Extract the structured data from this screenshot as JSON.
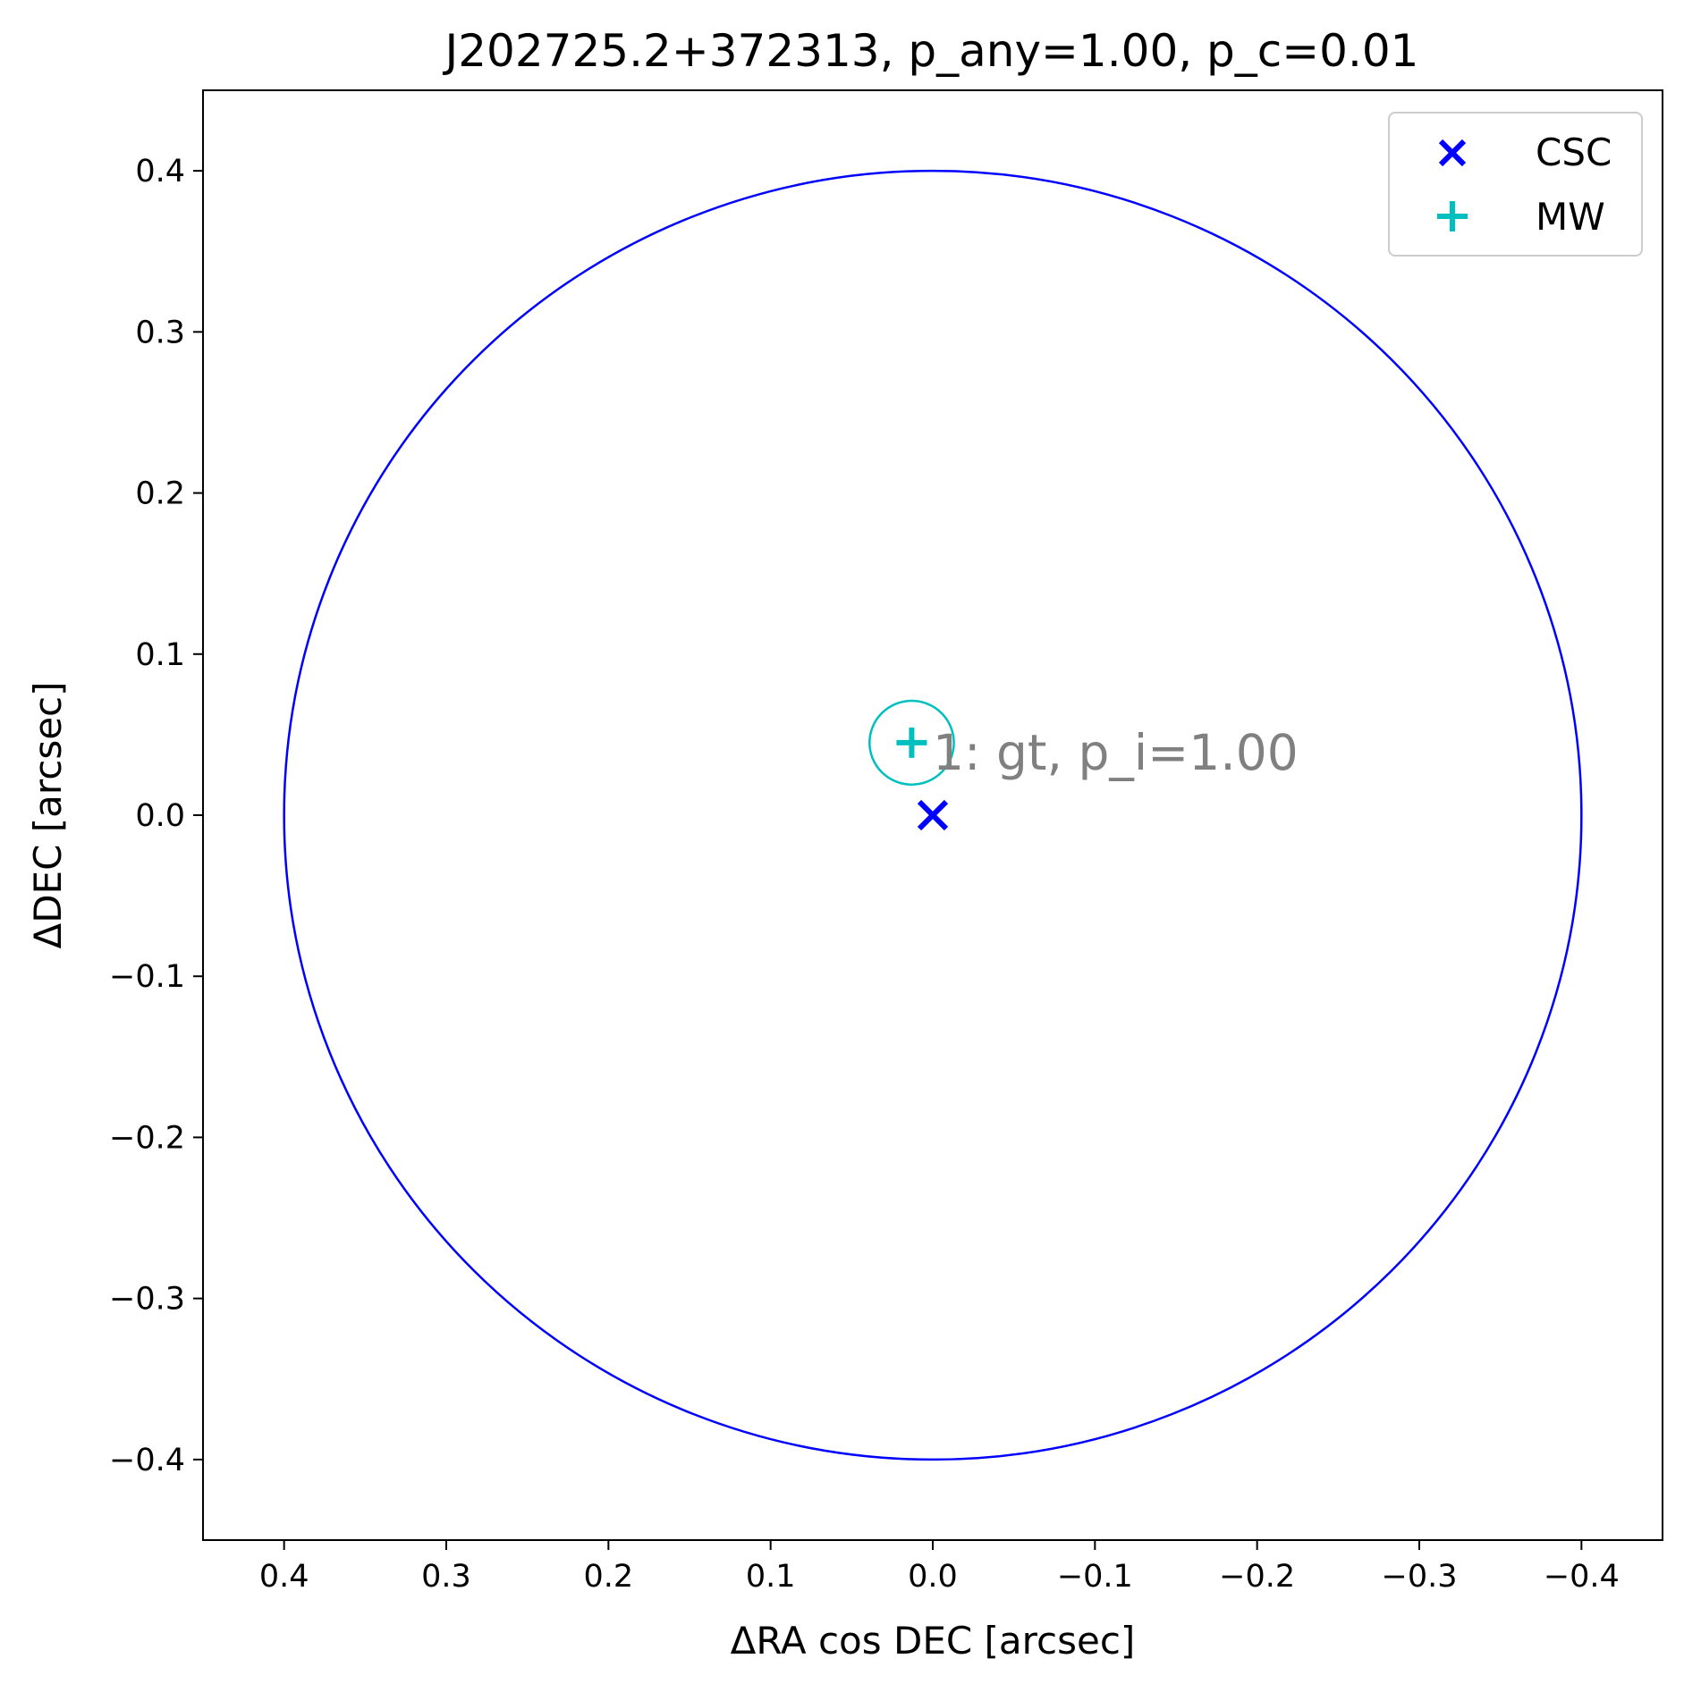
{
  "chart_data": {
    "type": "scatter",
    "title": "J202725.2+372313, p_any=1.00, p_c=0.01",
    "xlabel": "ΔRA cos DEC [arcsec]",
    "ylabel": "ΔDEC [arcsec]",
    "xlim": [
      0.45,
      -0.45
    ],
    "ylim": [
      -0.45,
      0.45
    ],
    "x_inverted": true,
    "grid": false,
    "legend_position": "top-right",
    "xticks": [
      0.4,
      0.3,
      0.2,
      0.1,
      0.0,
      -0.1,
      -0.2,
      -0.3,
      -0.4
    ],
    "xtick_labels": [
      "0.4",
      "0.3",
      "0.2",
      "0.1",
      "0.0",
      "−0.1",
      "−0.2",
      "−0.3",
      "−0.4"
    ],
    "yticks": [
      0.4,
      0.3,
      0.2,
      0.1,
      0.0,
      -0.1,
      -0.2,
      -0.3,
      -0.4
    ],
    "ytick_labels": [
      "0.4",
      "0.3",
      "0.2",
      "0.1",
      "0.0",
      "−0.1",
      "−0.2",
      "−0.3",
      "−0.4"
    ],
    "series": [
      {
        "name": "CSC",
        "marker": "x",
        "color": "#0000ff",
        "x": [
          0.0
        ],
        "y": [
          0.0
        ]
      },
      {
        "name": "MW",
        "marker": "+",
        "color": "#00bfbf",
        "x": [
          0.013
        ],
        "y": [
          0.045
        ]
      }
    ],
    "error_circles": [
      {
        "series": "CSC",
        "x": 0.0,
        "y": 0.0,
        "r": 0.4,
        "color": "#0000ff"
      },
      {
        "series": "MW",
        "x": 0.013,
        "y": 0.045,
        "r": 0.026,
        "color": "#00bfbf"
      }
    ],
    "annotations": [
      {
        "text": "1: gt, p_i=1.00",
        "x": 0.0,
        "y": 0.045,
        "color": "#808080"
      }
    ]
  }
}
